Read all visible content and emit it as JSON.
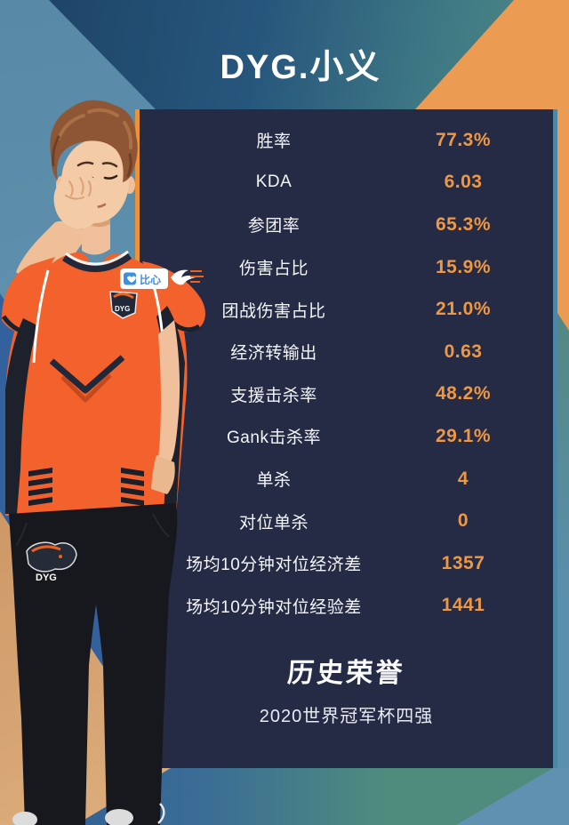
{
  "card": {
    "title": "DYG.小义",
    "honors_heading": "历史荣誉",
    "honors": [
      "2020世界冠军杯四强"
    ]
  },
  "stats": [
    {
      "label": "胜率",
      "value": "77.3%"
    },
    {
      "label": "KDA",
      "value": "6.03"
    },
    {
      "label": "参团率",
      "value": "65.3%"
    },
    {
      "label": "伤害占比",
      "value": "15.9%"
    },
    {
      "label": "团战伤害占比",
      "value": "21.0%"
    },
    {
      "label": "经济转输出",
      "value": "0.63"
    },
    {
      "label": "支援击杀率",
      "value": "48.2%"
    },
    {
      "label": "Gank击杀率",
      "value": "29.1%"
    },
    {
      "label": "单杀",
      "value": "4"
    },
    {
      "label": "对位单杀",
      "value": "0"
    },
    {
      "label": "场均10分钟对位经济差",
      "value": "1357"
    },
    {
      "label": "场均10分钟对位经验差",
      "value": "1441"
    }
  ],
  "player_photo": {
    "jersey_sponsor": "比心",
    "chest_crest_text": "DYG",
    "hip_patch_text": "DYG"
  },
  "colors": {
    "panel_navy": "#252A45",
    "value_orange": "#ED9845",
    "accent_strip_orange": "#EC9238",
    "accent_strip_blue": "#4C87A8",
    "background_orange_triangle": "#EC9B52",
    "background_steel_blue": "#5889A7",
    "background_royal_blue": "#33619E",
    "background_tan": "#C99260",
    "header_gradient_left": "#1C4164",
    "header_gradient_right": "#4E8B85",
    "jersey_orange": "#F3612C"
  }
}
